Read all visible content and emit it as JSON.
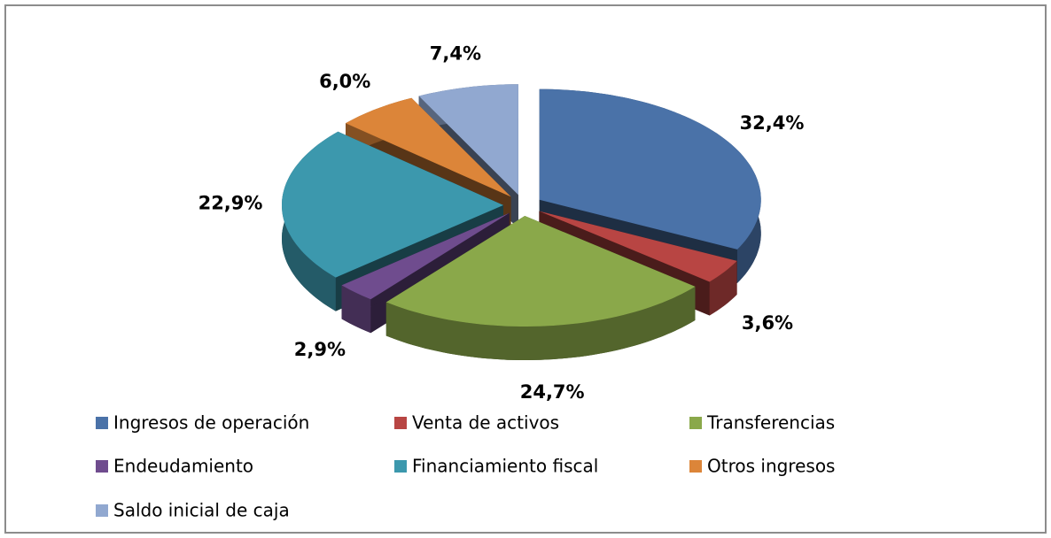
{
  "chart_data": {
    "type": "pie3d",
    "categories": [
      "Ingresos de operación",
      "Venta de activos",
      "Transferencias",
      "Endeudamiento",
      "Financiamiento fiscal",
      "Otros ingresos",
      "Saldo inicial de caja"
    ],
    "values": [
      32.4,
      3.6,
      24.7,
      2.9,
      22.9,
      6.0,
      7.4
    ],
    "value_labels": [
      "32,4%",
      "3,6%",
      "24,7%",
      "2,9%",
      "22,9%",
      "6,0%",
      "7,4%"
    ],
    "colors": [
      "#4a72a8",
      "#b84543",
      "#8aa84a",
      "#6f4c8e",
      "#3c98ad",
      "#dc8539",
      "#91a8d0"
    ],
    "legend": "bottom"
  }
}
